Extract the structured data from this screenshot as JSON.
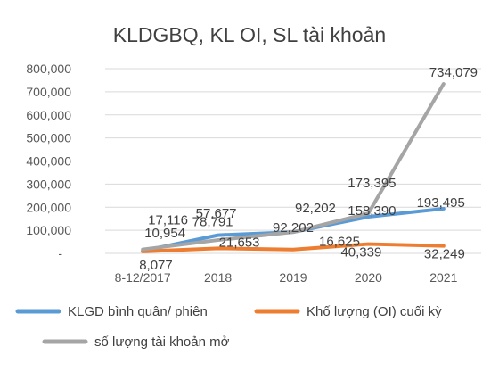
{
  "chart_data": {
    "type": "line",
    "title": "KLDGBQ, KL OI, SL tài khoản",
    "categories": [
      "8-12/2017",
      "2018",
      "2019",
      "2020",
      "2021"
    ],
    "y_ticks": [
      "-",
      "100,000",
      "200,000",
      "300,000",
      "400,000",
      "500,000",
      "600,000",
      "700,000",
      "800,000"
    ],
    "ylim": [
      0,
      800000
    ],
    "grid": true,
    "legend_position": "bottom",
    "series": [
      {
        "name": "KLGD bình quân/ phiên",
        "color": "#5b9bd5",
        "values": [
          10954,
          78791,
          92202,
          158390,
          193495
        ],
        "labels": [
          "10,954",
          "78,791",
          "92,202",
          "158,390",
          "193,495"
        ]
      },
      {
        "name": "Khố lượng (OI) cuối kỳ",
        "color": "#ed7d31",
        "values": [
          8077,
          21653,
          16625,
          40339,
          32249
        ],
        "labels": [
          "8,077",
          "21,653",
          "16,625",
          "40,339",
          "32,249"
        ]
      },
      {
        "name": "số lượng tài khoản mở",
        "color": "#a5a5a5",
        "values": [
          17116,
          57677,
          92202,
          173395,
          734079
        ],
        "labels": [
          "17,116",
          "57,677",
          "",
          "173,395",
          "734,079"
        ]
      }
    ]
  }
}
